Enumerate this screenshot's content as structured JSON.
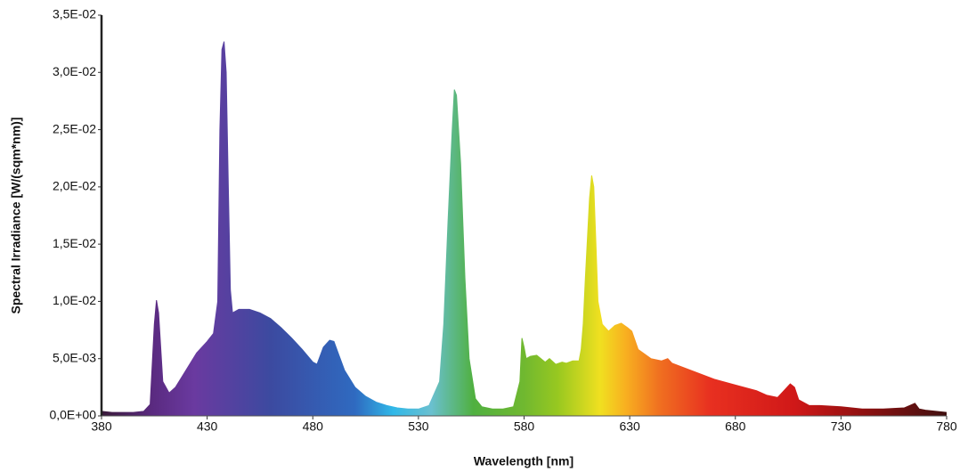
{
  "chart_data": {
    "type": "area",
    "xlabel": "Wavelength [nm]",
    "ylabel": "Spectral Irradiance [W/(sqm*nm)]",
    "xlim": [
      380,
      780
    ],
    "xticks": [
      380,
      430,
      480,
      530,
      580,
      630,
      680,
      730,
      780
    ],
    "ylim": [
      0,
      0.035
    ],
    "yticks": [
      {
        "value": 0,
        "label": "0,0E+00"
      },
      {
        "value": 0.005,
        "label": "5,0E-03"
      },
      {
        "value": 0.01,
        "label": "1,0E-02"
      },
      {
        "value": 0.015,
        "label": "1,5E-02"
      },
      {
        "value": 0.02,
        "label": "2,0E-02"
      },
      {
        "value": 0.025,
        "label": "2,5E-02"
      },
      {
        "value": 0.03,
        "label": "3,0E-02"
      },
      {
        "value": 0.035,
        "label": "3,5E-02"
      }
    ],
    "grid": false,
    "x": [
      380,
      385,
      390,
      395,
      400,
      403,
      405,
      406,
      407,
      409,
      412,
      415,
      420,
      425,
      430,
      433,
      435,
      436,
      437,
      438,
      439,
      440,
      441,
      442,
      445,
      450,
      455,
      460,
      465,
      470,
      475,
      480,
      482,
      485,
      488,
      490,
      492,
      495,
      500,
      505,
      510,
      515,
      520,
      525,
      530,
      535,
      540,
      542,
      544,
      546,
      547,
      548,
      550,
      552,
      554,
      557,
      560,
      565,
      570,
      575,
      578,
      579,
      580,
      581,
      583,
      586,
      590,
      592,
      595,
      598,
      600,
      603,
      606,
      607,
      608,
      609,
      611,
      612,
      613,
      614,
      615,
      617,
      620,
      623,
      626,
      629,
      631,
      634,
      640,
      645,
      648,
      650,
      660,
      670,
      680,
      690,
      695,
      700,
      703,
      706,
      708,
      710,
      715,
      720,
      730,
      740,
      750,
      760,
      765,
      767,
      770,
      775,
      780
    ],
    "values": [
      0.0004,
      0.0003,
      0.0003,
      0.0003,
      0.0004,
      0.001,
      0.008,
      0.0101,
      0.009,
      0.003,
      0.002,
      0.0025,
      0.004,
      0.0055,
      0.0065,
      0.0072,
      0.01,
      0.025,
      0.032,
      0.0327,
      0.03,
      0.02,
      0.011,
      0.009,
      0.0093,
      0.0093,
      0.009,
      0.0085,
      0.0077,
      0.0068,
      0.0058,
      0.0047,
      0.0045,
      0.006,
      0.0066,
      0.0065,
      0.0055,
      0.004,
      0.0025,
      0.0017,
      0.0012,
      0.0009,
      0.0007,
      0.0006,
      0.0006,
      0.0009,
      0.003,
      0.008,
      0.017,
      0.025,
      0.0285,
      0.028,
      0.022,
      0.012,
      0.005,
      0.0015,
      0.0008,
      0.0006,
      0.0006,
      0.0008,
      0.003,
      0.0068,
      0.006,
      0.005,
      0.0052,
      0.0053,
      0.0047,
      0.005,
      0.0045,
      0.0047,
      0.0046,
      0.0048,
      0.0048,
      0.0058,
      0.008,
      0.012,
      0.019,
      0.021,
      0.02,
      0.015,
      0.01,
      0.008,
      0.0074,
      0.0079,
      0.0081,
      0.0077,
      0.0074,
      0.0058,
      0.005,
      0.0048,
      0.005,
      0.0046,
      0.0039,
      0.0032,
      0.0027,
      0.0022,
      0.0018,
      0.0016,
      0.0022,
      0.0028,
      0.0025,
      0.0014,
      0.0009,
      0.0009,
      0.0008,
      0.0006,
      0.0006,
      0.0007,
      0.0011,
      0.0006,
      0.0005,
      0.0004,
      0.0003
    ]
  }
}
